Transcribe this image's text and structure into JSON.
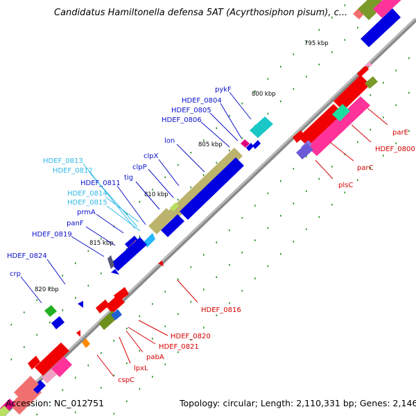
{
  "title": "Candidatus Hamiltonella defensa 5AT (Acyrthosiphon pisum), c...",
  "footer": {
    "accession": "Accession: NC_012751",
    "topology": "Topology: circular; Length: 2,110,331 bp; Genes: 2,146"
  },
  "ticks": [
    "795 kbp",
    "800 kbp",
    "805 kbp",
    "810 kbp",
    "815 kbp",
    "820 kbp"
  ],
  "labels_upper": [
    "pykF",
    "HDEF_0804",
    "HDEF_0805",
    "HDEF_0806",
    "lon",
    "clpX",
    "clpP",
    "tig",
    "HDEF_0811",
    "prmA",
    "panF",
    "HDEF_0819",
    "HDEF_0824",
    "crp"
  ],
  "labels_cyan": [
    "HDEF_0813",
    "HDEF_0812",
    "HDEF_0814",
    "HDEF_0815"
  ],
  "labels_lower": [
    "parE",
    "HDEF_0800",
    "parC",
    "plsC",
    "HDEF_0816",
    "HDEF_0820",
    "HDEF_0821",
    "pabA",
    "lpxL",
    "cspC"
  ],
  "colors": {
    "blue": "#0000e0",
    "red": "#f00000",
    "pink": "#ff3399",
    "khaki": "#bcb36c",
    "olive": "#6f8f1c",
    "cyan": "#19c7c7",
    "label_blue": "#0a10c8",
    "label_cyan": "#2fb8e6",
    "label_red": "#d50000"
  }
}
